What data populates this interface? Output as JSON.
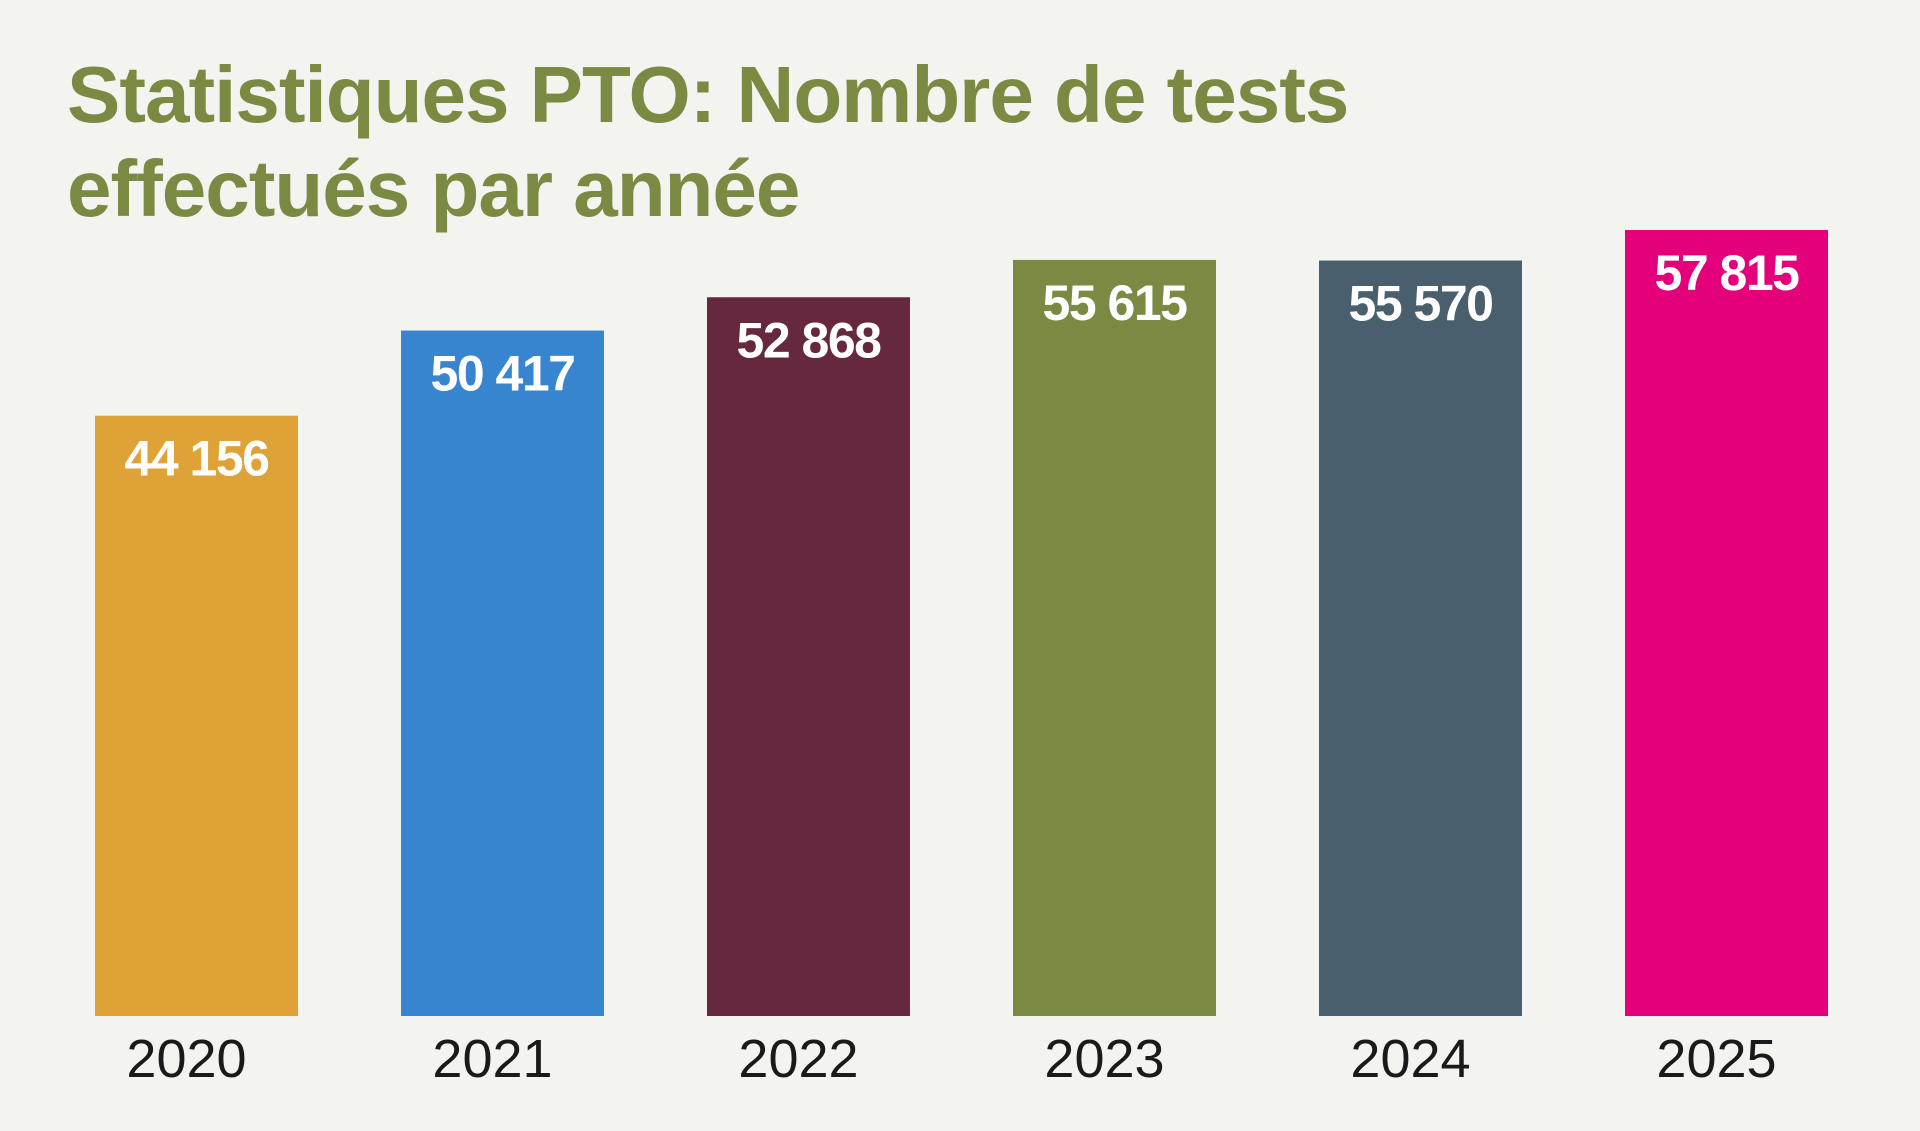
{
  "chart_data": {
    "type": "bar",
    "title": "Statistiques PTO: Nombre de tests effectués par année",
    "xlabel": "",
    "ylabel": "",
    "categories": [
      "2020",
      "2021",
      "2022",
      "2023",
      "2024",
      "2025"
    ],
    "values": [
      44156,
      50417,
      52868,
      55615,
      55570,
      57815
    ],
    "value_labels": [
      "44 156",
      "50 417",
      "52 868",
      "55 615",
      "55 570",
      "57 815"
    ],
    "colors": [
      "#dea236",
      "#3885cf",
      "#65283f",
      "#7a8a42",
      "#4a5f6e",
      "#e4007a"
    ],
    "ylim": [
      0,
      57815
    ],
    "grid": false,
    "legend": "none"
  }
}
